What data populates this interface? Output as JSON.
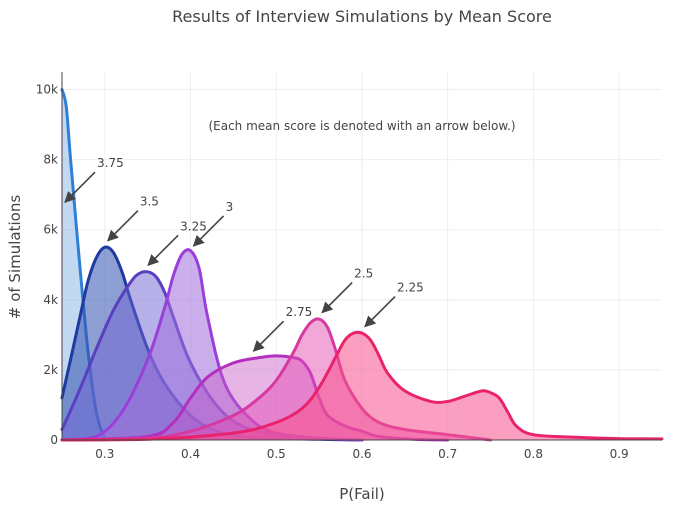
{
  "chart_data": {
    "type": "area",
    "title": "Results of Interview Simulations by Mean Score",
    "xlabel": "P(Fail)",
    "ylabel": "# of Simulations",
    "xlim": [
      0.25,
      0.95
    ],
    "ylim": [
      0,
      10500
    ],
    "x_ticks": [
      0.3,
      0.4,
      0.5,
      0.6,
      0.7,
      0.8,
      0.9
    ],
    "x_tick_labels": [
      "0.3",
      "0.4",
      "0.5",
      "0.6",
      "0.7",
      "0.8",
      "0.9"
    ],
    "y_ticks": [
      0,
      2000,
      4000,
      6000,
      8000,
      10000
    ],
    "y_tick_labels": [
      "0",
      "2k",
      "4k",
      "6k",
      "8k",
      "10k"
    ],
    "grid": true,
    "note": "(Each mean score is denoted with an arrow below.)",
    "series": [
      {
        "name": "3.75",
        "color": "#2f7fd6",
        "fill": "rgba(120,170,225,0.45)",
        "x": [
          0.25,
          0.255,
          0.26,
          0.27,
          0.28,
          0.29,
          0.3
        ],
        "y": [
          10000,
          9500,
          8000,
          5200,
          2600,
          800,
          0
        ]
      },
      {
        "name": "3.5",
        "color": "#1f3aa0",
        "fill": "rgba(50,80,175,0.55)",
        "x": [
          0.25,
          0.26,
          0.27,
          0.28,
          0.29,
          0.3,
          0.31,
          0.32,
          0.33,
          0.35,
          0.37,
          0.4,
          0.43,
          0.46,
          0.5,
          0.55,
          0.6
        ],
        "y": [
          1200,
          2300,
          3400,
          4500,
          5200,
          5500,
          5350,
          4800,
          4000,
          2600,
          1600,
          700,
          250,
          100,
          50,
          20,
          0
        ]
      },
      {
        "name": "3.25",
        "color": "#5a3fc0",
        "fill": "rgba(110,100,210,0.5)",
        "x": [
          0.25,
          0.27,
          0.29,
          0.31,
          0.33,
          0.34,
          0.35,
          0.36,
          0.37,
          0.38,
          0.4,
          0.43,
          0.46,
          0.5,
          0.55,
          0.6
        ],
        "y": [
          300,
          1400,
          2600,
          3700,
          4500,
          4750,
          4800,
          4650,
          4200,
          3500,
          2200,
          1000,
          400,
          150,
          50,
          0
        ]
      },
      {
        "name": "3",
        "color": "#9a3fd8",
        "fill": "rgba(160,110,220,0.55)",
        "x": [
          0.25,
          0.29,
          0.32,
          0.35,
          0.37,
          0.38,
          0.39,
          0.4,
          0.41,
          0.42,
          0.44,
          0.47,
          0.5,
          0.55,
          0.6
        ],
        "y": [
          0,
          100,
          800,
          2300,
          3800,
          4700,
          5300,
          5400,
          4900,
          3500,
          1600,
          600,
          200,
          50,
          0
        ]
      },
      {
        "name": "2.75",
        "color": "#b32fc0",
        "fill": "rgba(200,90,200,0.45)",
        "x": [
          0.25,
          0.35,
          0.38,
          0.4,
          0.42,
          0.45,
          0.48,
          0.5,
          0.52,
          0.53,
          0.54,
          0.55,
          0.56,
          0.58,
          0.6,
          0.62,
          0.66,
          0.7
        ],
        "y": [
          0,
          100,
          500,
          1200,
          1800,
          2200,
          2350,
          2400,
          2350,
          2250,
          1900,
          1200,
          700,
          400,
          250,
          100,
          20,
          0
        ]
      },
      {
        "name": "2.5",
        "color": "#d63aa0",
        "fill": "rgba(230,80,180,0.5)",
        "x": [
          0.25,
          0.35,
          0.4,
          0.45,
          0.48,
          0.5,
          0.52,
          0.53,
          0.54,
          0.55,
          0.56,
          0.57,
          0.58,
          0.6,
          0.62,
          0.65,
          0.7,
          0.75
        ],
        "y": [
          0,
          50,
          250,
          700,
          1200,
          1700,
          2500,
          3000,
          3350,
          3450,
          3200,
          2500,
          1700,
          900,
          500,
          300,
          150,
          0
        ]
      },
      {
        "name": "2.25",
        "color": "#e8236b",
        "fill": "rgba(245,80,140,0.55)",
        "x": [
          0.25,
          0.35,
          0.45,
          0.5,
          0.53,
          0.55,
          0.57,
          0.58,
          0.59,
          0.6,
          0.61,
          0.62,
          0.63,
          0.65,
          0.68,
          0.7,
          0.72,
          0.74,
          0.75,
          0.76,
          0.77,
          0.78,
          0.8,
          0.85,
          0.9,
          0.95
        ],
        "y": [
          0,
          20,
          200,
          500,
          900,
          1500,
          2400,
          2850,
          3050,
          3050,
          2850,
          2400,
          1900,
          1400,
          1100,
          1100,
          1250,
          1400,
          1350,
          1200,
          800,
          400,
          150,
          80,
          40,
          30
        ]
      }
    ],
    "annotations": [
      {
        "text": "3.75",
        "x": 0.25,
        "y": 6700
      },
      {
        "text": "3.5",
        "x": 0.3,
        "y": 5600
      },
      {
        "text": "3.25",
        "x": 0.347,
        "y": 4900
      },
      {
        "text": "3",
        "x": 0.4,
        "y": 5450
      },
      {
        "text": "2.75",
        "x": 0.47,
        "y": 2450
      },
      {
        "text": "2.5",
        "x": 0.55,
        "y": 3550
      },
      {
        "text": "2.25",
        "x": 0.6,
        "y": 3150
      }
    ]
  }
}
